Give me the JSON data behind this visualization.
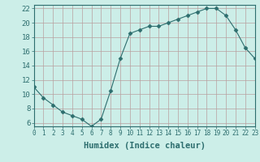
{
  "x": [
    0,
    1,
    2,
    3,
    4,
    5,
    6,
    7,
    8,
    9,
    10,
    11,
    12,
    13,
    14,
    15,
    16,
    17,
    18,
    19,
    20,
    21,
    22,
    23
  ],
  "y": [
    11,
    9.5,
    8.5,
    7.5,
    7,
    6.5,
    5.5,
    6.5,
    10.5,
    15,
    18.5,
    19,
    19.5,
    19.5,
    20,
    20.5,
    21,
    21.5,
    22,
    22,
    21,
    19,
    16.5,
    15
  ],
  "xlabel": "Humidex (Indice chaleur)",
  "xlim": [
    0,
    23
  ],
  "ylim": [
    5.5,
    22.5
  ],
  "yticks": [
    6,
    8,
    10,
    12,
    14,
    16,
    18,
    20,
    22
  ],
  "xticks": [
    0,
    1,
    2,
    3,
    4,
    5,
    6,
    7,
    8,
    9,
    10,
    11,
    12,
    13,
    14,
    15,
    16,
    17,
    18,
    19,
    20,
    21,
    22,
    23
  ],
  "line_color": "#2d6e6e",
  "marker": "D",
  "marker_size": 2.5,
  "bg_color": "#cceee8",
  "grid_color_major": "#b8a0a0",
  "grid_color_minor": "#b8a0a0",
  "axis_color": "#2d6e6e",
  "tick_fontsize": 5.5,
  "xlabel_fontsize": 7.5
}
